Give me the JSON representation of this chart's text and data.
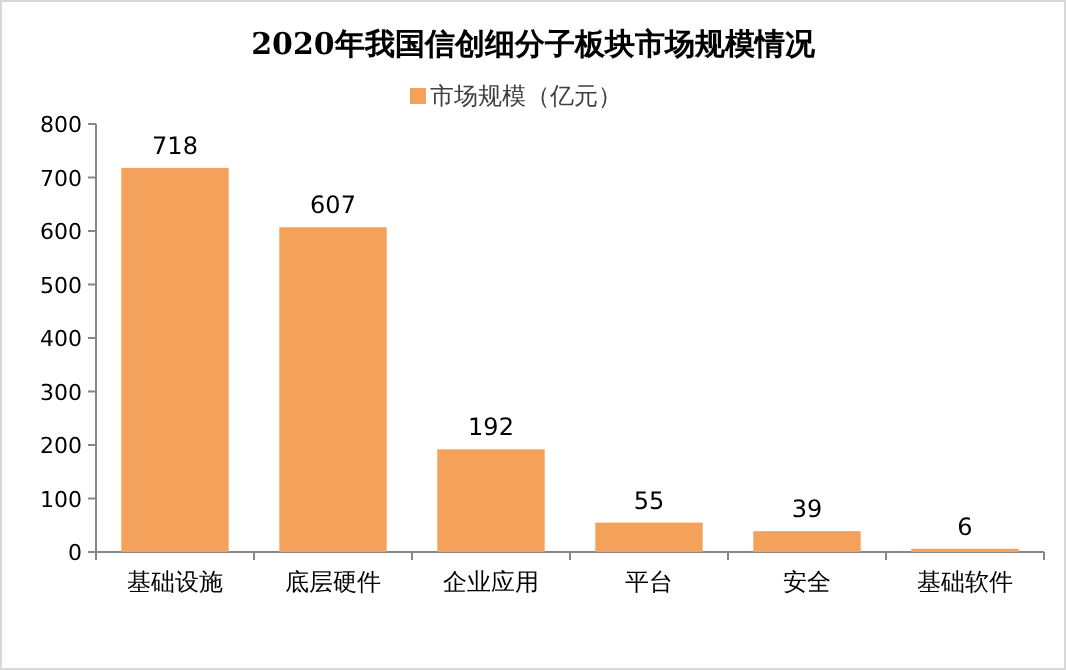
{
  "chart_data": {
    "type": "bar",
    "title": "2020年我国信创细分子板块市场规模情况",
    "categories": [
      "基础设施",
      "底层硬件",
      "企业应用",
      "平台",
      "安全",
      "基础软件"
    ],
    "series": [
      {
        "name": "市场规模（亿元）",
        "color": "#f4a25b",
        "values": [
          718,
          607,
          192,
          55,
          39,
          6
        ]
      }
    ],
    "ylim": [
      0,
      800
    ],
    "yticks": [
      0,
      100,
      200,
      300,
      400,
      500,
      600,
      700,
      800
    ],
    "data_labels": true,
    "legend": "top"
  }
}
